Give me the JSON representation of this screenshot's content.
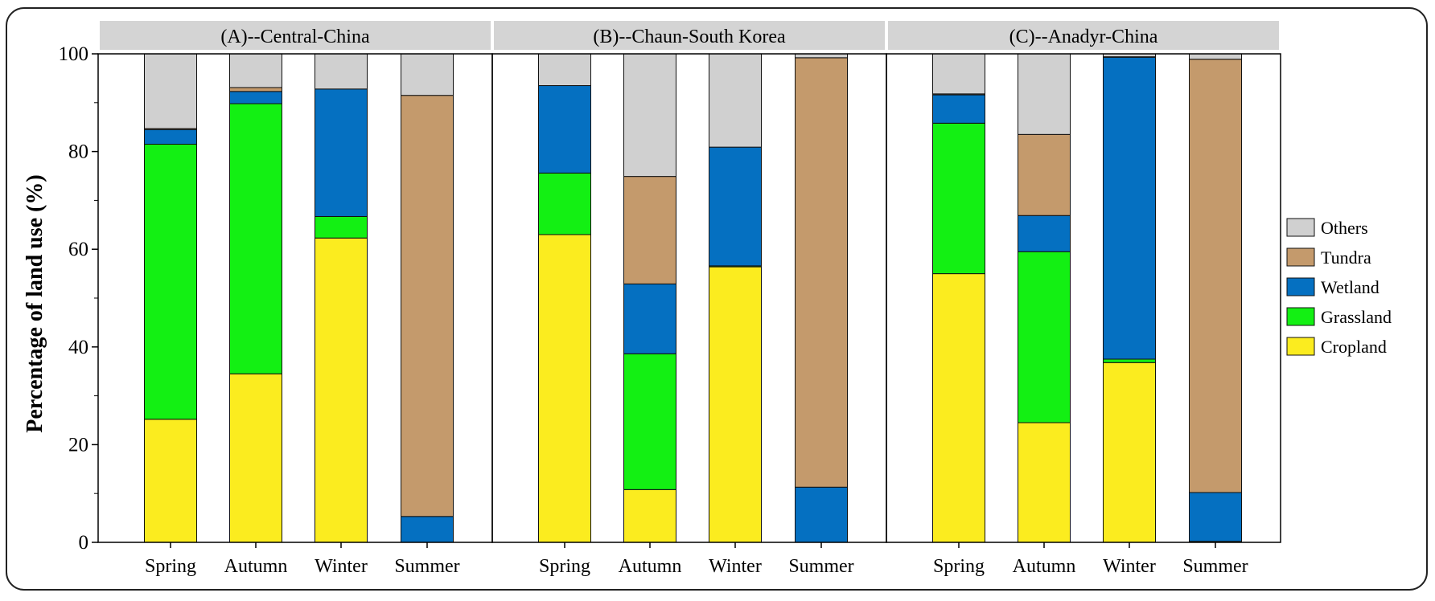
{
  "chart_data": {
    "type": "bar",
    "stacked": true,
    "ylabel": "Percentage of land use (%)",
    "ylim": [
      0,
      100
    ],
    "yticks": [
      0,
      20,
      40,
      60,
      80,
      100
    ],
    "grid": false,
    "legend_placement": "right",
    "categories": [
      "Spring",
      "Autumn",
      "Winter",
      "Summer"
    ],
    "series_order": [
      "Cropland",
      "Grassland",
      "Wetland",
      "Tundra",
      "Others"
    ],
    "legend_order": [
      "Others",
      "Tundra",
      "Wetland",
      "Grassland",
      "Cropland"
    ],
    "colors": {
      "Cropland": "#fbec1f",
      "Grassland": "#13f013",
      "Wetland": "#0570c1",
      "Tundra": "#c49a6c",
      "Others": "#d0d0d0"
    },
    "panels": [
      {
        "title": "(A)--Central-China",
        "series": [
          {
            "name": "Cropland",
            "values": [
              25.2,
              34.5,
              62.3,
              0.0
            ]
          },
          {
            "name": "Grassland",
            "values": [
              56.3,
              55.3,
              4.4,
              0.0
            ]
          },
          {
            "name": "Wetland",
            "values": [
              3.0,
              2.5,
              26.1,
              5.3
            ]
          },
          {
            "name": "Tundra",
            "values": [
              0.2,
              0.8,
              0.0,
              86.2
            ]
          },
          {
            "name": "Others",
            "values": [
              15.3,
              6.9,
              7.2,
              8.5
            ]
          }
        ]
      },
      {
        "title": "(B)--Chaun-South Korea",
        "series": [
          {
            "name": "Cropland",
            "values": [
              63.0,
              10.8,
              56.4,
              0.0
            ]
          },
          {
            "name": "Grassland",
            "values": [
              12.6,
              27.8,
              0.2,
              0.0
            ]
          },
          {
            "name": "Wetland",
            "values": [
              17.9,
              14.3,
              24.3,
              11.3
            ]
          },
          {
            "name": "Tundra",
            "values": [
              0.0,
              22.0,
              0.0,
              87.9
            ]
          },
          {
            "name": "Others",
            "values": [
              6.5,
              25.1,
              19.1,
              0.8
            ]
          }
        ]
      },
      {
        "title": "(C)--Anadyr-China",
        "series": [
          {
            "name": "Cropland",
            "values": [
              55.0,
              24.5,
              36.8,
              0.2
            ]
          },
          {
            "name": "Grassland",
            "values": [
              30.8,
              35.0,
              0.7,
              0.0
            ]
          },
          {
            "name": "Wetland",
            "values": [
              5.8,
              7.4,
              61.8,
              10.0
            ]
          },
          {
            "name": "Tundra",
            "values": [
              0.2,
              16.6,
              0.1,
              88.7
            ]
          },
          {
            "name": "Others",
            "values": [
              8.2,
              16.5,
              0.6,
              1.1
            ]
          }
        ]
      }
    ]
  }
}
